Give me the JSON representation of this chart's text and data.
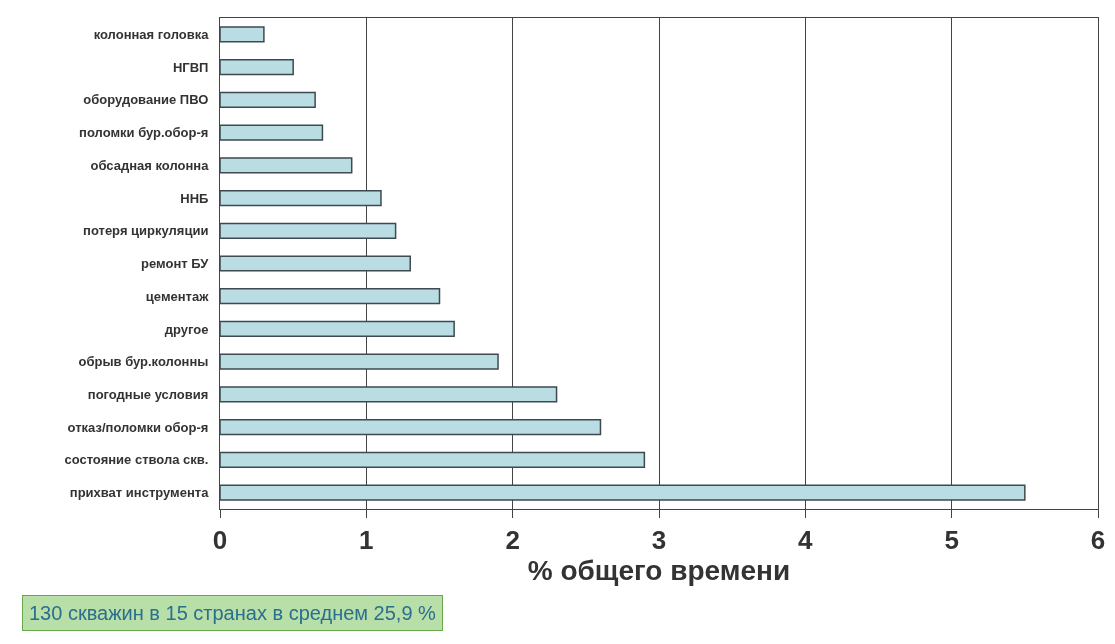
{
  "chart_data": {
    "type": "bar",
    "orientation": "horizontal",
    "xlabel": "% общего времени",
    "categories": [
      "колонная головка",
      "НГВП",
      "оборудование ПВО",
      "поломки бур.обор-я",
      "обсадная колонна",
      "ННБ",
      "потеря циркуляции",
      "ремонт БУ",
      "цементаж",
      "другое",
      "обрыв бур.колонны",
      "погодные условия",
      "отказ/поломки обор-я",
      "состояние ствола скв.",
      "прихват инструмента"
    ],
    "values": [
      0.3,
      0.5,
      0.65,
      0.7,
      0.9,
      1.1,
      1.2,
      1.3,
      1.5,
      1.6,
      1.9,
      2.3,
      2.6,
      2.9,
      5.5
    ],
    "color": "#b9dde3",
    "xlim": [
      0,
      6
    ],
    "xticks": [
      0,
      1,
      2,
      3,
      4,
      5,
      6
    ],
    "grid": "x",
    "legend": false,
    "annotations": [
      "130 скважин в 15 странах в среднем 25,9 %"
    ]
  }
}
